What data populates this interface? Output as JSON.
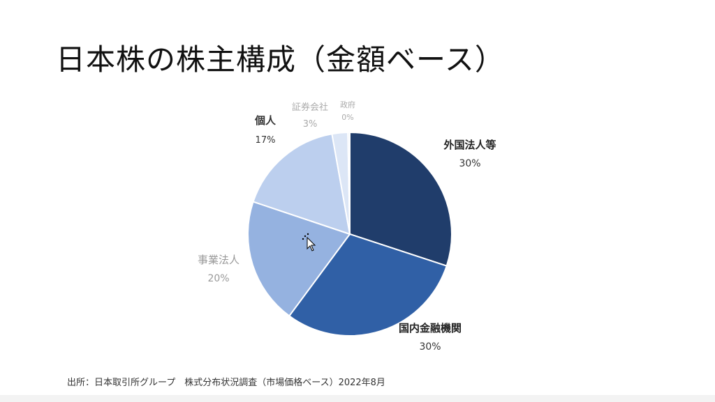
{
  "title": "日本株の株主構成（金額ベース）",
  "source": "出所：日本取引所グループ　株式分布状況調査（市場価格ベース）2022年8月",
  "chart_data": {
    "type": "pie",
    "title": "",
    "slices": [
      {
        "label": "外国法人等",
        "value": 30,
        "value_label": "30%",
        "color": "#203d6b",
        "label_color": "#222222",
        "bold": true
      },
      {
        "label": "国内金融機関",
        "value": 30,
        "value_label": "30%",
        "color": "#3060a6",
        "label_color": "#222222",
        "bold": true
      },
      {
        "label": "事業法人",
        "value": 20,
        "value_label": "20%",
        "color": "#95b2e0",
        "label_color": "#999999",
        "bold": false
      },
      {
        "label": "個人",
        "value": 17,
        "value_label": "17%",
        "color": "#bccfee",
        "label_color": "#333333",
        "bold": true
      },
      {
        "label": "証券会社",
        "value": 2.5,
        "value_label": "3%",
        "color": "#dce6f6",
        "label_color": "#aaaaaa",
        "bold": false
      },
      {
        "label": "政府",
        "value": 0.3,
        "value_label": "0%",
        "color": "#eef3fb",
        "label_color": "#aaaaaa",
        "bold": false
      }
    ]
  }
}
